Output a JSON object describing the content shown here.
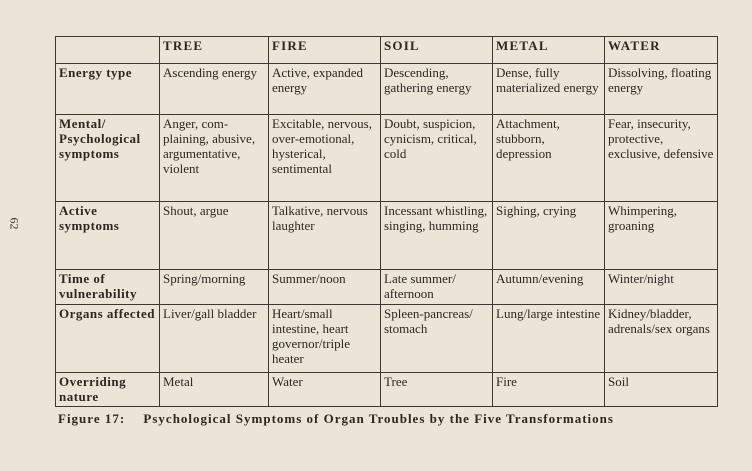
{
  "page_number": "62",
  "table": {
    "columns": [
      "",
      "TREE",
      "FIRE",
      "SOIL",
      "METAL",
      "WATER"
    ],
    "rows": [
      {
        "label": "Energy type",
        "cells": [
          "Ascending energy",
          "Active, expanded energy",
          "Descending, gathering energy",
          "Dense, fully materialized energy",
          "Dissolving, floating energy"
        ]
      },
      {
        "label": "Mental/ Psychological symptoms",
        "cells": [
          "Anger, com-plaining, abusive, argumentative, violent",
          "Excitable, nervous, over-emotional, hysterical, sentimental",
          "Doubt, suspicion, cynicism, critical, cold",
          "Attachment, stubborn, depression",
          "Fear, insecurity, protective, exclusive, defensive"
        ]
      },
      {
        "label": "Active symptoms",
        "cells": [
          "Shout, argue",
          "Talkative, nervous laughter",
          "Incessant whistling, singing, humming",
          "Sighing, crying",
          "Whimpering, groaning"
        ]
      },
      {
        "label": "Time of vulnerability",
        "cells": [
          "Spring/morning",
          "Summer/noon",
          "Late summer/ afternoon",
          "Autumn/evening",
          "Winter/night"
        ]
      },
      {
        "label": "Organs affected",
        "cells": [
          "Liver/gall bladder",
          "Heart/small intestine, heart governor/triple heater",
          "Spleen-pancreas/ stomach",
          "Lung/large intestine",
          "Kidney/bladder, adrenals/sex organs"
        ]
      },
      {
        "label": "Overriding nature",
        "cells": [
          "Metal",
          "Water",
          "Tree",
          "Fire",
          "Soil"
        ]
      }
    ]
  },
  "caption": {
    "label": "Figure 17:",
    "text": "Psychological Symptoms of Organ Troubles by the Five Transformations"
  }
}
